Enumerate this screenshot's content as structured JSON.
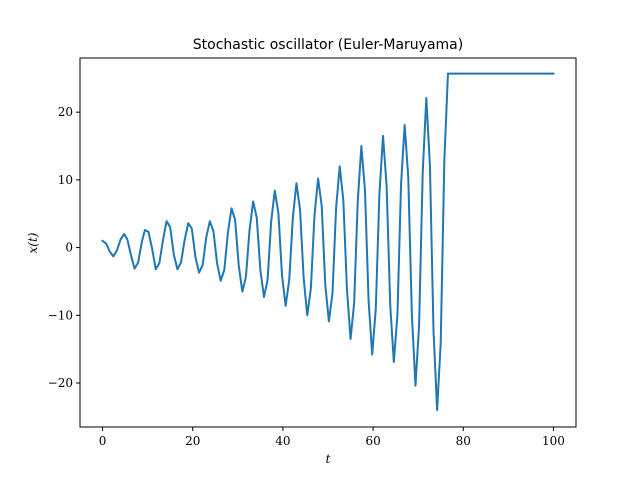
{
  "chart_data": {
    "type": "line",
    "title": "Stochastic oscillator (Euler-Maruyama)",
    "xlabel": "t",
    "ylabel": "x(t)",
    "xlim": [
      -5,
      105
    ],
    "ylim": [
      -26.5,
      28.0
    ],
    "grid": false,
    "legend": "none",
    "xticks": [
      0,
      20,
      40,
      60,
      80,
      100
    ],
    "xtick_labels": [
      "0",
      "20",
      "40",
      "60",
      "80",
      "100"
    ],
    "yticks": [
      -20,
      -10,
      0,
      10,
      20
    ],
    "ytick_labels": [
      "−20",
      "−10",
      "0",
      "10",
      "20"
    ],
    "series": [
      {
        "color": "#1f77b4",
        "x": [
          0,
          0.8,
          1.6,
          2.4,
          3.2,
          4.0,
          4.8,
          5.5,
          6.3,
          7.1,
          7.9,
          8.7,
          9.4,
          10.2,
          11.0,
          11.8,
          12.6,
          13.4,
          14.2,
          15.0,
          15.8,
          16.6,
          17.4,
          18.2,
          19.0,
          19.8,
          20.6,
          21.4,
          22.2,
          23.0,
          23.8,
          24.6,
          25.4,
          26.2,
          27.0,
          27.8,
          28.6,
          29.4,
          30.2,
          31.0,
          31.8,
          32.6,
          33.4,
          34.2,
          35.0,
          35.8,
          36.6,
          37.4,
          38.2,
          39.0,
          39.8,
          40.6,
          41.4,
          42.2,
          43.0,
          43.8,
          44.6,
          45.4,
          46.2,
          47.0,
          47.8,
          48.6,
          49.4,
          50.2,
          51.0,
          51.8,
          52.6,
          53.4,
          54.2,
          55.0,
          55.8,
          56.6,
          57.4,
          58.2,
          59.0,
          59.8,
          60.6,
          61.4,
          62.2,
          63.0,
          63.8,
          64.6,
          65.4,
          66.2,
          67.0,
          67.8,
          68.6,
          69.4,
          70.2,
          71.0,
          71.8,
          72.6,
          73.4,
          74.2,
          75.0,
          75.8,
          76.6,
          77.4,
          78.2,
          79.0,
          79.8,
          80.6,
          81.4,
          82.2,
          83.0,
          83.8,
          84.6,
          85.4,
          86.2,
          87.0,
          87.8,
          88.6,
          89.4,
          90.2,
          91.0,
          91.8,
          92.6,
          93.4,
          94.2,
          95.0,
          95.8,
          96.6,
          97.4,
          98.2,
          99.0,
          99.6,
          100.0
        ],
        "y": [
          1.0,
          0.6,
          -0.6,
          -1.3,
          -0.4,
          1.2,
          2.0,
          1.2,
          -1.1,
          -3.1,
          -2.2,
          0.8,
          2.6,
          2.3,
          -0.2,
          -3.2,
          -2.3,
          1.1,
          3.9,
          3.0,
          -1.0,
          -3.2,
          -2.2,
          1.1,
          3.6,
          2.8,
          -1.4,
          -3.7,
          -2.6,
          1.5,
          3.9,
          2.4,
          -2.3,
          -4.9,
          -3.3,
          2.2,
          5.8,
          4.1,
          -2.6,
          -6.5,
          -4.3,
          2.6,
          6.8,
          4.4,
          -3.3,
          -7.3,
          -4.8,
          3.9,
          8.4,
          5.1,
          -4.1,
          -8.6,
          -4.8,
          4.4,
          9.5,
          5.6,
          -4.5,
          -10.0,
          -6.0,
          4.7,
          10.2,
          6.2,
          -5.5,
          -10.9,
          -6.7,
          5.9,
          12.0,
          7.0,
          -6.1,
          -13.5,
          -8.2,
          6.9,
          15.0,
          8.5,
          -7.8,
          -15.8,
          -9.0,
          7.9,
          16.5,
          9.1,
          -8.5,
          -16.9,
          -9.9,
          9.3,
          18.1,
          10.4,
          -9.9,
          -20.4,
          -11.5,
          11.0,
          22.1,
          12.2,
          -12.3,
          -24.0,
          -14.0,
          12.8,
          25.7,
          25.7,
          25.7,
          25.7,
          25.7,
          25.7,
          25.7,
          25.7,
          25.7,
          25.7,
          25.7,
          25.7,
          25.7,
          25.7,
          25.7,
          25.7,
          25.7,
          25.7,
          25.7,
          25.7,
          25.7,
          25.7,
          25.7,
          25.7,
          25.7,
          25.7,
          25.7,
          25.7,
          25.7,
          25.7,
          25.7
        ]
      }
    ]
  }
}
